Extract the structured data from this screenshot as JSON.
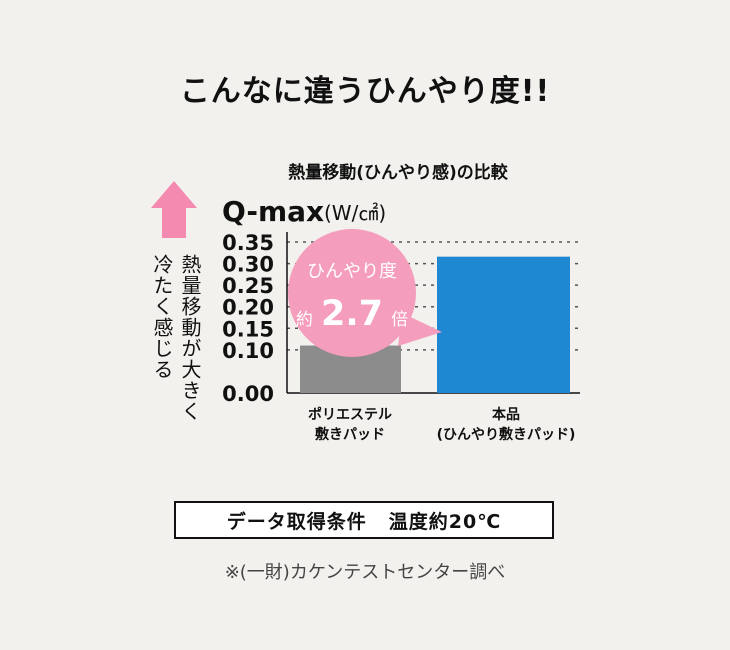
{
  "headline": "こんなに違うひんやり度!!",
  "chart_data": {
    "type": "bar",
    "title": "熱量移動(ひんやり感)の比較",
    "ylabel_main": "Q-max",
    "ylabel_unit": "(W/㎠)",
    "side_label_line1": "熱量移動が大きく",
    "side_label_line2": "冷たく感じる",
    "yticks": [
      "0.35",
      "0.30",
      "0.25",
      "0.20",
      "0.15",
      "0.10",
      "0.00"
    ],
    "tick_values": [
      0.35,
      0.3,
      0.25,
      0.2,
      0.15,
      0.1,
      0.0
    ],
    "ylim": [
      0,
      0.35
    ],
    "grid": true,
    "categories": [
      {
        "line1": "ポリエステル",
        "line2": "敷きパッド"
      },
      {
        "line1": "本品",
        "line2": "(ひんやり敷きパッド)"
      }
    ],
    "values": [
      0.11,
      0.316
    ],
    "colors": [
      "#8c8c8c",
      "#1e88d2"
    ],
    "callout": {
      "line1": "ひんやり度",
      "prefix": "約",
      "value": "2.7",
      "suffix": "倍",
      "color": "#f59dbc"
    },
    "arrow_color": "#f58ab0"
  },
  "footer": {
    "condition_label": "データ取得条件",
    "condition_value": "温度約20℃",
    "source_note": "※(一財)カケンテストセンター調べ"
  }
}
